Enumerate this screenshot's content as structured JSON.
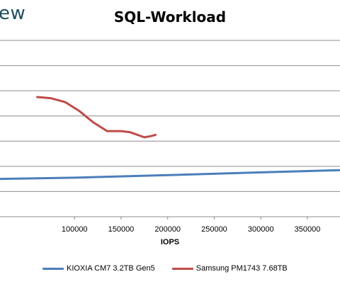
{
  "header": {
    "brand_fragment": "ew"
  },
  "chart_data": {
    "type": "line",
    "title": "SQL-Workload",
    "xlabel": "IOPS",
    "ylabel": "",
    "xlim": [
      20000,
      385000
    ],
    "ylim": [
      0,
      7
    ],
    "x_ticks": [
      100000,
      150000,
      200000,
      250000,
      300000,
      350000
    ],
    "x_tick_labels": [
      "100000",
      "150000",
      "200000",
      "250000",
      "300000",
      "350000"
    ],
    "y_gridlines": [
      1,
      2,
      3,
      4,
      5,
      6,
      7
    ],
    "grid": true,
    "legend_position": "bottom",
    "series": [
      {
        "name": "KIOXIA CM7 3.2TB Gen5",
        "color": "#4a7ebb",
        "x": [
          20000,
          100000,
          200000,
          300000,
          385000
        ],
        "y": [
          1.5,
          1.55,
          1.65,
          1.76,
          1.85
        ]
      },
      {
        "name": "Samsung PM1743 7.68TB",
        "color": "#be4b48",
        "x": [
          60000,
          75000,
          90000,
          105000,
          120000,
          135000,
          150000,
          160000,
          175000,
          182000,
          187000
        ],
        "y": [
          4.75,
          4.7,
          4.55,
          4.2,
          3.75,
          3.4,
          3.4,
          3.35,
          3.15,
          3.2,
          3.25
        ]
      }
    ]
  }
}
